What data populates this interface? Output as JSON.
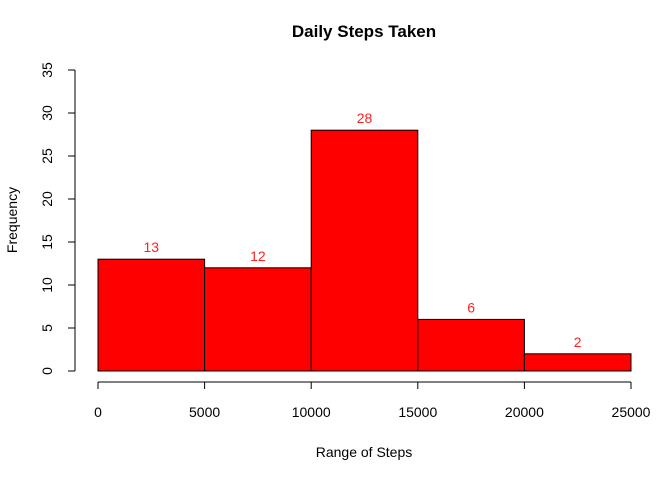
{
  "chart_data": {
    "type": "bar",
    "title": "Daily Steps Taken",
    "xlabel": "Range of Steps",
    "ylabel": "Frequency",
    "bins": [
      {
        "start": 0,
        "end": 5000,
        "value": 13
      },
      {
        "start": 5000,
        "end": 10000,
        "value": 12
      },
      {
        "start": 10000,
        "end": 15000,
        "value": 28
      },
      {
        "start": 15000,
        "end": 20000,
        "value": 6
      },
      {
        "start": 20000,
        "end": 25000,
        "value": 2
      }
    ],
    "data_labels": [
      "13",
      "12",
      "28",
      "6",
      "2"
    ],
    "xlim": [
      0,
      25000
    ],
    "ylim": [
      0,
      35
    ],
    "xticks": [
      0,
      5000,
      10000,
      15000,
      20000,
      25000
    ],
    "xtick_labels": [
      "0",
      "5000",
      "10000",
      "15000",
      "20000",
      "25000"
    ],
    "yticks": [
      0,
      5,
      10,
      15,
      20,
      25,
      30,
      35
    ],
    "ytick_labels": [
      "0",
      "5",
      "10",
      "15",
      "20",
      "25",
      "30",
      "35"
    ],
    "bar_color": "#ff0000",
    "bar_border_color": "#000000",
    "label_color": "#ff2222",
    "grid": false,
    "legend": "none"
  }
}
